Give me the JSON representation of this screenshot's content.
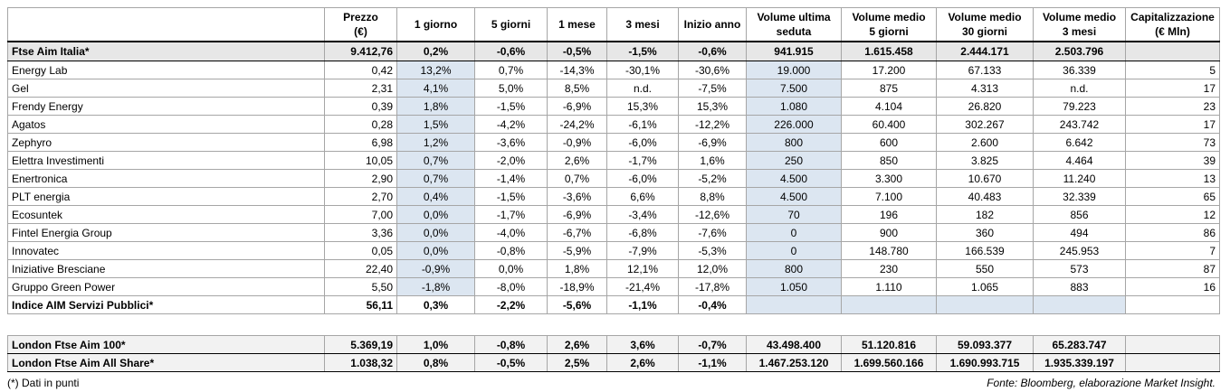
{
  "table": {
    "header": [
      "Prezzo\n(€)",
      "1 giorno",
      "5 giorni",
      "1 mese",
      "3 mesi",
      "Inizio anno",
      "Volume ultima\nseduta",
      "Volume medio\n5 giorni",
      "Volume medio\n30 giorni",
      "Volume medio\n3 mesi",
      "Capitalizzazione\n(€ Mln)"
    ],
    "index_row": {
      "name": "Ftse Aim Italia*",
      "values": [
        "9.412,76",
        "0,2%",
        "-0,6%",
        "-0,5%",
        "-1,5%",
        "-0,6%",
        "941.915",
        "1.615.458",
        "2.444.171",
        "2.503.796",
        null
      ]
    },
    "stocks": [
      {
        "name": "Energy Lab",
        "values": [
          "0,42",
          "13,2%",
          "0,7%",
          "-14,3%",
          "-30,1%",
          "-30,6%",
          "19.000",
          "17.200",
          "67.133",
          "36.339",
          "5"
        ]
      },
      {
        "name": "Gel",
        "values": [
          "2,31",
          "4,1%",
          "5,0%",
          "8,5%",
          "n.d.",
          "-7,5%",
          "7.500",
          "875",
          "4.313",
          "n.d.",
          "17"
        ]
      },
      {
        "name": "Frendy Energy",
        "values": [
          "0,39",
          "1,8%",
          "-1,5%",
          "-6,9%",
          "15,3%",
          "15,3%",
          "1.080",
          "4.104",
          "26.820",
          "79.223",
          "23"
        ]
      },
      {
        "name": "Agatos",
        "values": [
          "0,28",
          "1,5%",
          "-4,2%",
          "-24,2%",
          "-6,1%",
          "-12,2%",
          "226.000",
          "60.400",
          "302.267",
          "243.742",
          "17"
        ]
      },
      {
        "name": "Zephyro",
        "values": [
          "6,98",
          "1,2%",
          "-3,6%",
          "-0,9%",
          "-6,0%",
          "-6,9%",
          "800",
          "600",
          "2.600",
          "6.642",
          "73"
        ]
      },
      {
        "name": "Elettra Investimenti",
        "values": [
          "10,05",
          "0,7%",
          "-2,0%",
          "2,6%",
          "-1,7%",
          "1,6%",
          "250",
          "850",
          "3.825",
          "4.464",
          "39"
        ]
      },
      {
        "name": "Enertronica",
        "values": [
          "2,90",
          "0,7%",
          "-1,4%",
          "0,7%",
          "-6,0%",
          "-5,2%",
          "4.500",
          "3.300",
          "10.670",
          "11.240",
          "13"
        ]
      },
      {
        "name": "PLT energia",
        "values": [
          "2,70",
          "0,4%",
          "-1,5%",
          "-3,6%",
          "6,6%",
          "8,8%",
          "4.500",
          "7.100",
          "40.483",
          "32.339",
          "65"
        ]
      },
      {
        "name": "Ecosuntek",
        "values": [
          "7,00",
          "0,0%",
          "-1,7%",
          "-6,9%",
          "-3,4%",
          "-12,6%",
          "70",
          "196",
          "182",
          "856",
          "12"
        ]
      },
      {
        "name": "Fintel Energia Group",
        "values": [
          "3,36",
          "0,0%",
          "-4,0%",
          "-6,7%",
          "-6,8%",
          "-7,6%",
          "0",
          "900",
          "360",
          "494",
          "86"
        ]
      },
      {
        "name": "Innovatec",
        "values": [
          "0,05",
          "0,0%",
          "-0,8%",
          "-5,9%",
          "-7,9%",
          "-5,3%",
          "0",
          "148.780",
          "166.539",
          "245.953",
          "7"
        ]
      },
      {
        "name": "Iniziative Bresciane",
        "values": [
          "22,40",
          "-0,9%",
          "0,0%",
          "1,8%",
          "12,1%",
          "12,0%",
          "800",
          "230",
          "550",
          "573",
          "87"
        ]
      },
      {
        "name": "Gruppo Green Power",
        "values": [
          "5,50",
          "-1,8%",
          "-8,0%",
          "-18,9%",
          "-21,4%",
          "-17,8%",
          "1.050",
          "1.110",
          "1.065",
          "883",
          "16"
        ]
      }
    ],
    "sector_row": {
      "name": "Indice AIM Servizi Pubblici*",
      "values": [
        "56,11",
        "0,3%",
        "-2,2%",
        "-5,6%",
        "-1,1%",
        "-0,4%",
        null,
        null,
        null,
        null,
        null
      ]
    },
    "london": [
      {
        "name": "London Ftse Aim 100*",
        "values": [
          "5.369,19",
          "1,0%",
          "-0,8%",
          "2,6%",
          "3,6%",
          "-0,7%",
          "43.498.400",
          "51.120.816",
          "59.093.377",
          "65.283.747",
          null
        ]
      },
      {
        "name": "London Ftse Aim All Share*",
        "values": [
          "1.038,32",
          "0,8%",
          "-0,5%",
          "2,5%",
          "2,6%",
          "-1,1%",
          "1.467.253.120",
          "1.699.560.166",
          "1.690.993.715",
          "1.935.339.197",
          null
        ]
      }
    ]
  },
  "notes": {
    "left": "(*) Dati in punti",
    "right": "Fonte: Bloomberg, elaborazione Market Insight."
  }
}
